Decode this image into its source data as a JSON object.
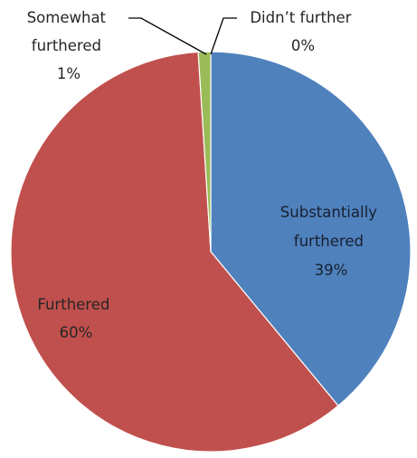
{
  "chart_data": {
    "type": "pie",
    "title": "",
    "slices": [
      {
        "label_lines": [
          "Substantially",
          "furthered"
        ],
        "label": "Substantially furthered",
        "value": 39,
        "value_label": "39%",
        "color": "#4f81bd"
      },
      {
        "label_lines": [
          "Furthered"
        ],
        "label": "Furthered",
        "value": 60,
        "value_label": "60%",
        "color": "#c0504d"
      },
      {
        "label_lines": [
          "Somewhat",
          "furthered"
        ],
        "label": "Somewhat furthered",
        "value": 1,
        "value_label": "1%",
        "color": "#9bbb59"
      },
      {
        "label_lines": [
          "Didn’t further"
        ],
        "label": "Didn’t further",
        "value": 0,
        "value_label": "0%",
        "color": "#8064a2"
      }
    ],
    "legend": "none",
    "data_labels": "category-name-and-percent"
  }
}
